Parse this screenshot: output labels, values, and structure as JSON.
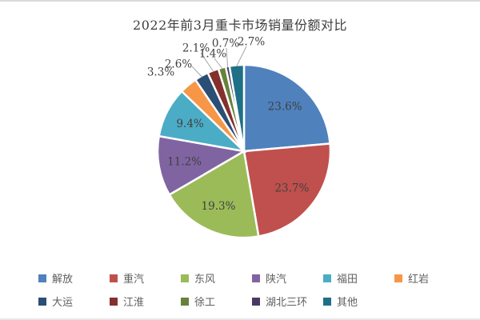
{
  "chart_data": {
    "type": "pie",
    "title": "2022年前3月重卡市场销量份额对比",
    "direction": "clockwise",
    "start_angle_deg": 0,
    "legend_position": "bottom",
    "legend_rows": [
      6,
      5
    ],
    "slices": [
      {
        "label": "解放",
        "value": 23.6,
        "display": "23.6%",
        "color": "#4F81BD"
      },
      {
        "label": "重汽",
        "value": 23.7,
        "display": "23.7%",
        "color": "#C0504D"
      },
      {
        "label": "东风",
        "value": 19.3,
        "display": "19.3%",
        "color": "#9BBB59"
      },
      {
        "label": "陕汽",
        "value": 11.2,
        "display": "11.2%",
        "color": "#8064A2"
      },
      {
        "label": "福田",
        "value": 9.4,
        "display": "9.4%",
        "color": "#4BACC6"
      },
      {
        "label": "红岩",
        "value": 3.3,
        "display": "3.3%",
        "color": "#F79646"
      },
      {
        "label": "大运",
        "value": 2.6,
        "display": "2.6%",
        "color": "#2B4E74"
      },
      {
        "label": "江淮",
        "value": 2.1,
        "display": "2.1%",
        "color": "#84302E"
      },
      {
        "label": "徐工",
        "value": 1.4,
        "display": "1.4%",
        "color": "#67823A"
      },
      {
        "label": "湖北三环",
        "value": 0.7,
        "display": "0.7%",
        "color": "#4A3A63"
      },
      {
        "label": "其他",
        "value": 2.7,
        "display": "2.7%",
        "color": "#1F7086"
      }
    ],
    "style": {
      "slice_gap_color": "#ffffff",
      "label_text_color": "#3F3F3F",
      "legend_text_color": "#5F5F5F",
      "leader_line_color": "#A6A6A6",
      "title_color": "#3D3D3D",
      "frame_line_color": "#DADADA"
    }
  }
}
